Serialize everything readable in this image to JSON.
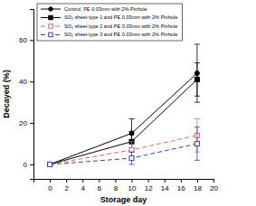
{
  "chart_data": {
    "type": "line",
    "x_label": "Storage day",
    "y_label": "Decayed (%)",
    "x": [
      0,
      10,
      18
    ],
    "xlim": [
      -2,
      20
    ],
    "xticks": [
      0,
      2,
      4,
      6,
      8,
      10,
      12,
      14,
      16,
      18,
      20
    ],
    "ylim": [
      -7,
      75
    ],
    "yticks": [
      0,
      20,
      40,
      60
    ],
    "legend": "top-left",
    "grid": false,
    "series": [
      {
        "name": "Control, PE 0.03mm with 2% Pinhole",
        "color": "#000000",
        "marker": "circle",
        "line_style": "solid",
        "values": [
          0,
          15,
          44
        ],
        "errors": [
          0,
          7,
          14
        ]
      },
      {
        "name": "SO₂ sheet type 1 and PE 0.03mm with 2% Pinhole",
        "color": "#000000",
        "marker": "square",
        "line_style": "solid",
        "values": [
          0,
          11,
          41
        ],
        "errors": [
          0,
          5,
          8
        ]
      },
      {
        "name": "SO₂ sheet type 2 and PE 0.03mm with 2% Pinhole",
        "color": "#e06666",
        "marker": "square-open",
        "line_style": "dashed",
        "values": [
          0,
          7,
          14
        ],
        "errors": [
          0,
          4,
          8
        ]
      },
      {
        "name": "SO₂ sheet type 3 and PE 0.03mm with 2% Pinhole",
        "color": "#3b3bc4",
        "marker": "square-open",
        "line_style": "dashed",
        "values": [
          0,
          3,
          10
        ],
        "errors": [
          0,
          3,
          8
        ]
      }
    ]
  }
}
